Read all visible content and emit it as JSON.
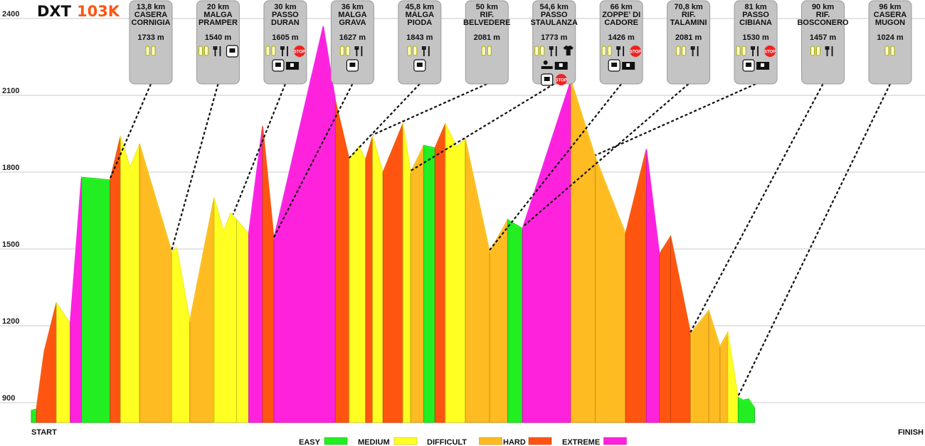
{
  "title": {
    "prefix": "DXT",
    "accent": "103K"
  },
  "colors": {
    "EASY": "#22ee22",
    "MEDIUM": "#ffff22",
    "DIFFICULT": "#ffbb22",
    "HARD": "#ff5511",
    "EXTREME": "#ff22dd",
    "accent": "#ff5511",
    "card_bg": "#c4c4c4"
  },
  "axis": {
    "start_label": "START",
    "finish_label": "FINISH"
  },
  "chart_data": {
    "type": "area",
    "title": "DXT 103K",
    "xlabel": "",
    "ylabel": "",
    "ylim": [
      840,
      2400
    ],
    "yticks": [
      900,
      1200,
      1500,
      1800,
      2100,
      2400
    ],
    "xlim": [
      0,
      103
    ],
    "grid": true,
    "legend_position": "bottom",
    "legend": [
      "EASY",
      "MEDIUM",
      "DIFFICULT",
      "HARD",
      "EXTREME"
    ],
    "profile": [
      [
        0.0,
        870
      ],
      [
        0.6,
        875
      ],
      [
        1.5,
        1100
      ],
      [
        2.9,
        1290
      ],
      [
        4.5,
        1210
      ],
      [
        5.8,
        1780
      ],
      [
        9.1,
        1770
      ],
      [
        10.3,
        1940
      ],
      [
        11.4,
        1820
      ],
      [
        12.5,
        1910
      ],
      [
        16.2,
        1490
      ],
      [
        16.8,
        1505
      ],
      [
        18.3,
        1220
      ],
      [
        21.1,
        1700
      ],
      [
        22.2,
        1570
      ],
      [
        23.0,
        1640
      ],
      [
        23.7,
        1615
      ],
      [
        25.1,
        1560
      ],
      [
        26.7,
        1980
      ],
      [
        28.0,
        1540
      ],
      [
        33.7,
        2370
      ],
      [
        35.1,
        2080
      ],
      [
        36.7,
        1850
      ],
      [
        37.8,
        1900
      ],
      [
        38.6,
        1850
      ],
      [
        39.4,
        1940
      ],
      [
        40.6,
        1800
      ],
      [
        42.9,
        1990
      ],
      [
        43.8,
        1800
      ],
      [
        45.3,
        1905
      ],
      [
        46.6,
        1895
      ],
      [
        47.8,
        1990
      ],
      [
        49.1,
        1900
      ],
      [
        50.1,
        1930
      ],
      [
        52.9,
        1490
      ],
      [
        55.0,
        1615
      ],
      [
        56.7,
        1580
      ],
      [
        62.3,
        2160
      ],
      [
        65.1,
        1860
      ],
      [
        68.6,
        1560
      ],
      [
        71.0,
        1890
      ],
      [
        72.5,
        1480
      ],
      [
        73.8,
        1550
      ],
      [
        76.1,
        1170
      ],
      [
        78.2,
        1260
      ],
      [
        79.5,
        1120
      ],
      [
        80.4,
        1175
      ],
      [
        81.6,
        920
      ],
      [
        82.2,
        910
      ],
      [
        82.8,
        915
      ],
      [
        83.5,
        880
      ]
    ],
    "segments": [
      {
        "from_km": 0.0,
        "to_km": 0.6,
        "difficulty": "EASY"
      },
      {
        "from_km": 0.6,
        "to_km": 2.9,
        "difficulty": "HARD"
      },
      {
        "from_km": 2.9,
        "to_km": 4.5,
        "difficulty": "MEDIUM"
      },
      {
        "from_km": 4.5,
        "to_km": 5.8,
        "difficulty": "EXTREME"
      },
      {
        "from_km": 5.8,
        "to_km": 9.1,
        "difficulty": "EASY"
      },
      {
        "from_km": 9.1,
        "to_km": 10.3,
        "difficulty": "HARD"
      },
      {
        "from_km": 10.3,
        "to_km": 12.5,
        "difficulty": "MEDIUM"
      },
      {
        "from_km": 12.5,
        "to_km": 16.2,
        "difficulty": "DIFFICULT"
      },
      {
        "from_km": 16.2,
        "to_km": 18.3,
        "difficulty": "MEDIUM"
      },
      {
        "from_km": 18.3,
        "to_km": 21.1,
        "difficulty": "DIFFICULT"
      },
      {
        "from_km": 21.1,
        "to_km": 23.7,
        "difficulty": "MEDIUM"
      },
      {
        "from_km": 23.7,
        "to_km": 25.1,
        "difficulty": "MEDIUM"
      },
      {
        "from_km": 25.1,
        "to_km": 26.7,
        "difficulty": "EXTREME"
      },
      {
        "from_km": 26.7,
        "to_km": 28.0,
        "difficulty": "HARD"
      },
      {
        "from_km": 28.0,
        "to_km": 35.1,
        "difficulty": "EXTREME"
      },
      {
        "from_km": 35.1,
        "to_km": 36.7,
        "difficulty": "HARD"
      },
      {
        "from_km": 36.7,
        "to_km": 38.6,
        "difficulty": "MEDIUM"
      },
      {
        "from_km": 38.6,
        "to_km": 39.4,
        "difficulty": "HARD"
      },
      {
        "from_km": 39.4,
        "to_km": 40.6,
        "difficulty": "MEDIUM"
      },
      {
        "from_km": 40.6,
        "to_km": 42.9,
        "difficulty": "HARD"
      },
      {
        "from_km": 42.9,
        "to_km": 43.8,
        "difficulty": "MEDIUM"
      },
      {
        "from_km": 43.8,
        "to_km": 45.3,
        "difficulty": "DIFFICULT"
      },
      {
        "from_km": 45.3,
        "to_km": 46.6,
        "difficulty": "EASY"
      },
      {
        "from_km": 46.6,
        "to_km": 47.8,
        "difficulty": "HARD"
      },
      {
        "from_km": 47.8,
        "to_km": 50.1,
        "difficulty": "MEDIUM"
      },
      {
        "from_km": 50.1,
        "to_km": 52.9,
        "difficulty": "DIFFICULT"
      },
      {
        "from_km": 52.9,
        "to_km": 55.0,
        "difficulty": "DIFFICULT"
      },
      {
        "from_km": 55.0,
        "to_km": 56.7,
        "difficulty": "EASY"
      },
      {
        "from_km": 56.7,
        "to_km": 62.3,
        "difficulty": "EXTREME"
      },
      {
        "from_km": 62.3,
        "to_km": 65.1,
        "difficulty": "DIFFICULT"
      },
      {
        "from_km": 65.1,
        "to_km": 68.6,
        "difficulty": "DIFFICULT"
      },
      {
        "from_km": 68.6,
        "to_km": 71.0,
        "difficulty": "HARD"
      },
      {
        "from_km": 71.0,
        "to_km": 72.5,
        "difficulty": "EXTREME"
      },
      {
        "from_km": 72.5,
        "to_km": 73.8,
        "difficulty": "HARD"
      },
      {
        "from_km": 73.8,
        "to_km": 76.1,
        "difficulty": "HARD"
      },
      {
        "from_km": 76.1,
        "to_km": 78.2,
        "difficulty": "DIFFICULT"
      },
      {
        "from_km": 78.2,
        "to_km": 79.5,
        "difficulty": "DIFFICULT"
      },
      {
        "from_km": 79.5,
        "to_km": 80.4,
        "difficulty": "DIFFICULT"
      },
      {
        "from_km": 80.4,
        "to_km": 81.6,
        "difficulty": "MEDIUM"
      },
      {
        "from_km": 81.6,
        "to_km": 83.5,
        "difficulty": "EASY"
      }
    ],
    "waypoints": [
      {
        "km_label": "13,8 km",
        "name": [
          "CASERA",
          "CORNIGIA"
        ],
        "elevation": "1733 m",
        "km": 9.1,
        "icons": [
          [
            "water-icon"
          ]
        ]
      },
      {
        "km_label": "20 km",
        "name": [
          "MALGA",
          "PRAMPER"
        ],
        "elevation": "1540 m",
        "km": 16.2,
        "icons": [
          [
            "water-icon",
            "food-icon",
            "bus-icon"
          ]
        ]
      },
      {
        "km_label": "30 km",
        "name": [
          "PASSO",
          "DURAN"
        ],
        "elevation": "1605 m",
        "km": 23.3,
        "icons": [
          [
            "water-icon",
            "food-icon",
            "stop-icon"
          ],
          [
            "bus-icon",
            "ambulance-icon"
          ]
        ]
      },
      {
        "km_label": "36 km",
        "name": [
          "MALGA",
          "GRAVA"
        ],
        "elevation": "1627 m",
        "km": 28.0,
        "icons": [
          [
            "water-icon",
            "food-icon"
          ],
          [
            "bus-icon"
          ]
        ]
      },
      {
        "km_label": "45,8 km",
        "name": [
          "MALGA",
          "PIODA"
        ],
        "elevation": "1843 m",
        "km": 36.7,
        "icons": [
          [
            "water-icon",
            "food-icon"
          ],
          [
            "bus-icon"
          ]
        ]
      },
      {
        "km_label": "50 km",
        "name": [
          "RIF.",
          "BELVEDERE"
        ],
        "elevation": "2081 m",
        "km": 39.4,
        "icons": [
          [
            "water-icon"
          ]
        ]
      },
      {
        "km_label": "54,6 km",
        "name": [
          "PASSO",
          "STAULANZA"
        ],
        "elevation": "1773 m",
        "km": 43.8,
        "icons": [
          [
            "water-icon",
            "food-icon",
            "shirt-icon"
          ],
          [
            "massage-icon",
            "ambulance-icon"
          ],
          [
            "bus-icon",
            "stop-icon"
          ]
        ]
      },
      {
        "km_label": "66 km",
        "name": [
          "ZOPPE' DI",
          "CADORE"
        ],
        "elevation": "1426 m",
        "km": 52.9,
        "icons": [
          [
            "water-icon",
            "food-icon",
            "stop-icon"
          ],
          [
            "bus-icon",
            "ambulance-icon"
          ]
        ]
      },
      {
        "km_label": "70,8 km",
        "name": [
          "RIF.",
          "TALAMINI"
        ],
        "elevation": "2081 m",
        "km": 56.7,
        "icons": [
          [
            "water-icon",
            "food-icon"
          ]
        ]
      },
      {
        "km_label": "81 km",
        "name": [
          "PASSO",
          "CIBIANA"
        ],
        "elevation": "1530 m",
        "km": 65.1,
        "icons": [
          [
            "water-icon",
            "food-icon",
            "stop-icon"
          ],
          [
            "bus-icon",
            "ambulance-icon"
          ]
        ]
      },
      {
        "km_label": "90 km",
        "name": [
          "RIF.",
          "BOSCONERO"
        ],
        "elevation": "1457 m",
        "km": 76.1,
        "icons": [
          [
            "water-icon",
            "food-icon"
          ]
        ]
      },
      {
        "km_label": "96 km",
        "name": [
          "CASERA",
          "MUGON"
        ],
        "elevation": "1024 m",
        "km": 81.6,
        "icons": [
          [
            "water-icon"
          ]
        ]
      }
    ]
  }
}
